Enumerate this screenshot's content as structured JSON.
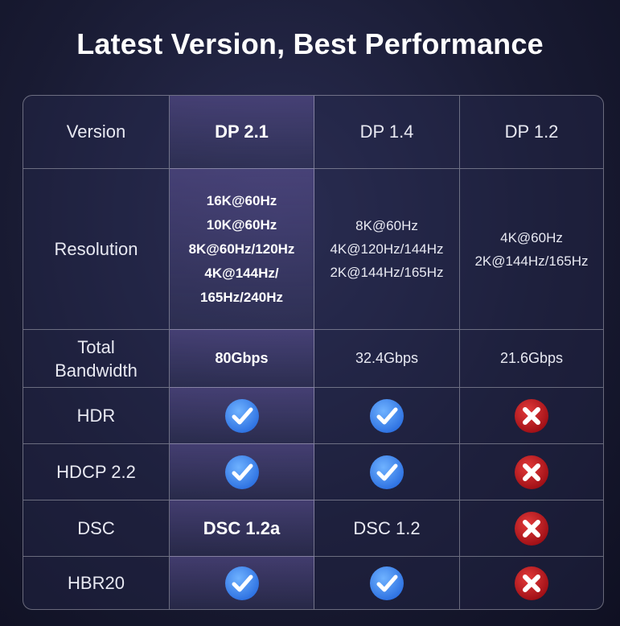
{
  "title": "Latest Version, Best Performance",
  "table": {
    "rows": [
      [
        "Version",
        "DP 2.1",
        "DP 1.4",
        "DP 1.2"
      ],
      [
        "Resolution",
        [
          "16K@60Hz",
          "10K@60Hz",
          "8K@60Hz/120Hz",
          "4K@144Hz/",
          "165Hz/240Hz"
        ],
        [
          "8K@60Hz",
          "4K@120Hz/144Hz",
          "2K@144Hz/165Hz"
        ],
        [
          "4K@60Hz",
          "2K@144Hz/165Hz"
        ]
      ],
      [
        "Total Bandwidth",
        "80Gbps",
        "32.4Gbps",
        "21.6Gbps"
      ],
      [
        "HDR"
      ],
      [
        "HDCP 2.2"
      ],
      [
        "DSC",
        "DSC 1.2a",
        "DSC 1.2"
      ],
      [
        "HBR20"
      ]
    ]
  }
}
